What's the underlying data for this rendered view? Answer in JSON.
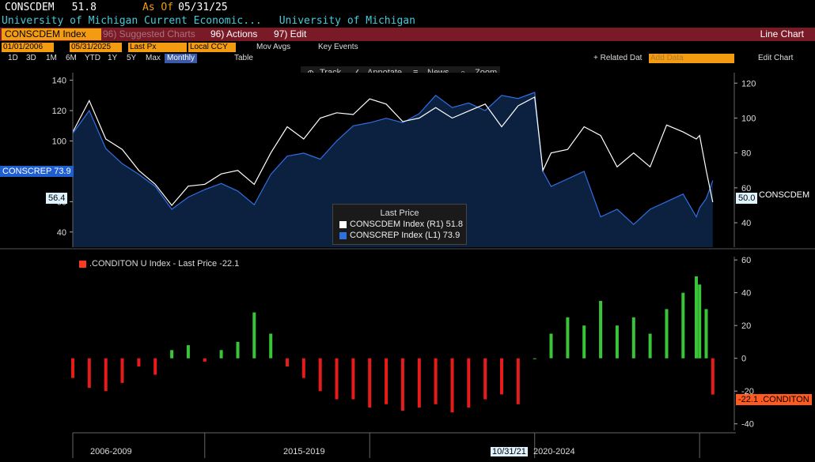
{
  "header": {
    "ticker": "CONSCDEM",
    "last_value": "51.8",
    "as_of_label": "As Of",
    "as_of_date": "05/31/25",
    "subtitle_left": "University of Michigan Current Economic...",
    "subtitle_right": "University of Michigan"
  },
  "menubar": {
    "ticker_field": "CONSCDEM Index",
    "suggested": "96) Suggested Charts",
    "actions": "96) Actions",
    "edit": "97) Edit",
    "chart_type": "Line Chart"
  },
  "toolbar": {
    "start_date": "01/01/2006",
    "end_date": "05/31/2025",
    "field": "Last Px",
    "currency": "Local CCY",
    "mov_avgs": "Mov Avgs",
    "key_events": "Key Events",
    "periods": [
      "1D",
      "3D",
      "1M",
      "6M",
      "YTD",
      "1Y",
      "5Y",
      "Max"
    ],
    "frequency": "Monthly",
    "table": "Table",
    "related": "+ Related Dat",
    "add_data": "Add Data",
    "edit_chart": "Edit Chart"
  },
  "chart_tools": {
    "track": "Track",
    "annotate": "Annotate",
    "news": "News",
    "zoom": "Zoom"
  },
  "legend": {
    "title": "Last Price",
    "items": [
      {
        "text": "CONSCDEM Index  (R1) 51.8",
        "color": "#ffffff"
      },
      {
        "text": "CONSCREP Index  (L1) 73.9",
        "color": "#2f6fe0"
      }
    ]
  },
  "tags": {
    "conscrep": "CONSCREP 73.9",
    "left_val": "56.4",
    "right_val": "50.0",
    "right_name": "CONSCDEM",
    "condition_val": "-22.1",
    "condition_name": ".CONDITON"
  },
  "lower_legend": ".CONDITON U Index - Last Price -22.1",
  "x_labels": [
    "2006-2009",
    "2015-2019",
    "2020-2024"
  ],
  "x_cursor": "10/31/21",
  "chart_data": [
    {
      "type": "line",
      "series": [
        {
          "name": "CONSCDEM Index",
          "axis": "right",
          "x": [
            2006.0,
            2006.5,
            2007.0,
            2007.5,
            2008.0,
            2008.5,
            2009.0,
            2009.5,
            2010.0,
            2010.5,
            2011.0,
            2011.5,
            2012.0,
            2012.5,
            2013.0,
            2013.5,
            2014.0,
            2014.5,
            2015.0,
            2015.5,
            2016.0,
            2016.5,
            2017.0,
            2017.5,
            2018.0,
            2018.5,
            2019.0,
            2019.5,
            2020.0,
            2020.25,
            2020.5,
            2021.0,
            2021.5,
            2022.0,
            2022.5,
            2023.0,
            2023.5,
            2024.0,
            2024.5,
            2024.9,
            2025.0,
            2025.2,
            2025.4
          ],
          "values": [
            92,
            110,
            88,
            82,
            70,
            62,
            50,
            61,
            62,
            68,
            70,
            62,
            80,
            95,
            88,
            100,
            103,
            102,
            111,
            108,
            98,
            100,
            106,
            100,
            104,
            108,
            95,
            107,
            112,
            70,
            80,
            82,
            95,
            90,
            72,
            80,
            72,
            96,
            92,
            88,
            90,
            70,
            51.8
          ]
        },
        {
          "name": "CONSCREP Index",
          "axis": "left",
          "x": [
            2006.0,
            2006.5,
            2007.0,
            2007.5,
            2008.0,
            2008.5,
            2009.0,
            2009.5,
            2010.0,
            2010.5,
            2011.0,
            2011.5,
            2012.0,
            2012.5,
            2013.0,
            2013.5,
            2014.0,
            2014.5,
            2015.0,
            2015.5,
            2016.0,
            2016.5,
            2017.0,
            2017.5,
            2018.0,
            2018.5,
            2019.0,
            2019.5,
            2020.0,
            2020.25,
            2020.5,
            2021.0,
            2021.5,
            2022.0,
            2022.5,
            2023.0,
            2023.5,
            2024.0,
            2024.5,
            2024.9,
            2025.0,
            2025.2,
            2025.4
          ],
          "values": [
            105,
            120,
            95,
            85,
            78,
            70,
            55,
            63,
            68,
            72,
            67,
            58,
            78,
            90,
            92,
            88,
            100,
            110,
            112,
            115,
            112,
            118,
            130,
            122,
            125,
            120,
            130,
            128,
            132,
            80,
            70,
            75,
            80,
            50,
            55,
            45,
            55,
            60,
            65,
            50,
            56,
            62,
            73.9
          ]
        }
      ],
      "xlim": [
        2006,
        2025.5
      ],
      "y_left": {
        "ticks": [
          40,
          60,
          80,
          100,
          120,
          140
        ],
        "range": [
          30,
          145
        ]
      },
      "y_right": {
        "ticks": [
          40,
          60,
          80,
          100,
          120
        ],
        "range": [
          26,
          126
        ]
      }
    },
    {
      "type": "bar",
      "series": [
        {
          "name": ".CONDITON U Index",
          "x": [
            2006.0,
            2006.5,
            2007.0,
            2007.5,
            2008.0,
            2008.5,
            2009.0,
            2009.5,
            2010.0,
            2010.5,
            2011.0,
            2011.5,
            2012.0,
            2012.5,
            2013.0,
            2013.5,
            2014.0,
            2014.5,
            2015.0,
            2015.5,
            2016.0,
            2016.5,
            2017.0,
            2017.5,
            2018.0,
            2018.5,
            2019.0,
            2019.5,
            2020.0,
            2020.5,
            2021.0,
            2021.5,
            2022.0,
            2022.5,
            2023.0,
            2023.5,
            2024.0,
            2024.5,
            2024.9,
            2025.0,
            2025.2,
            2025.4
          ],
          "values": [
            -12,
            -18,
            -20,
            -15,
            -5,
            -10,
            5,
            8,
            -2,
            5,
            10,
            28,
            15,
            -5,
            -12,
            -20,
            -25,
            -25,
            -30,
            -28,
            -32,
            -30,
            -28,
            -33,
            -30,
            -25,
            -22,
            -28,
            0,
            15,
            25,
            20,
            35,
            20,
            25,
            15,
            30,
            40,
            50,
            45,
            30,
            -22.1
          ]
        }
      ],
      "xlim": [
        2006,
        2025.5
      ],
      "y_right": {
        "ticks": [
          -40,
          -20,
          0,
          20,
          40,
          60
        ],
        "range": [
          -44,
          62
        ]
      }
    }
  ]
}
